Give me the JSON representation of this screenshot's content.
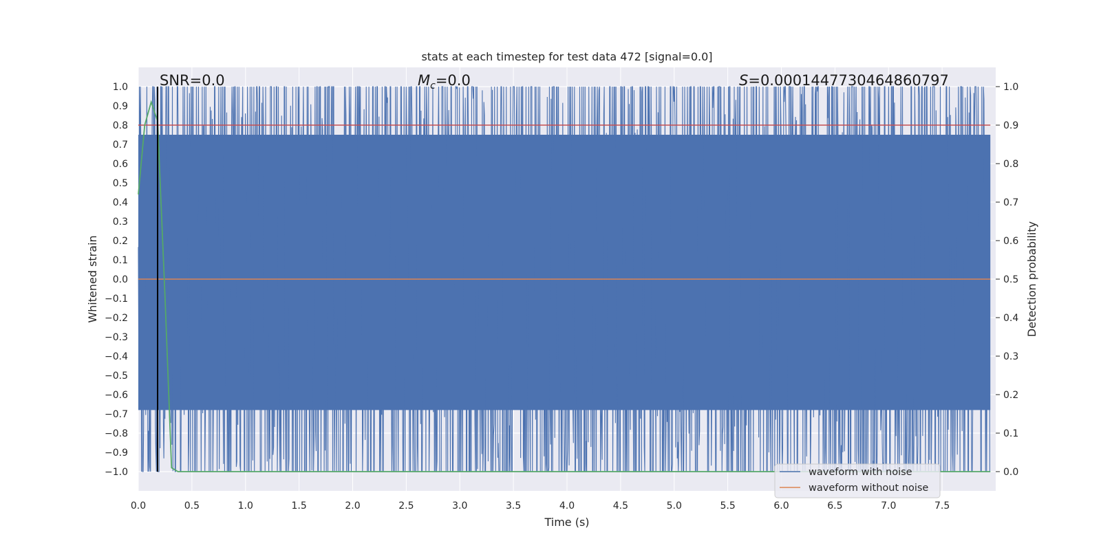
{
  "chart_data": {
    "type": "line",
    "title": "stats at each timestep for test data 472 [signal=0.0]",
    "xlabel": "Time (s)",
    "ylabel": "Whitened strain",
    "ylabel_right": "Detection probability",
    "xlim": [
      0.0,
      8.0
    ],
    "ylim": [
      -1.1,
      1.1
    ],
    "ylim_right": [
      -0.05,
      1.05
    ],
    "grid": true,
    "x_ticks": [
      "0.0",
      "0.5",
      "1.0",
      "1.5",
      "2.0",
      "2.5",
      "3.0",
      "3.5",
      "4.0",
      "4.5",
      "5.0",
      "5.5",
      "6.0",
      "6.5",
      "7.0",
      "7.5"
    ],
    "x_tick_values": [
      0.0,
      0.5,
      1.0,
      1.5,
      2.0,
      2.5,
      3.0,
      3.5,
      4.0,
      4.5,
      5.0,
      5.5,
      6.0,
      6.5,
      7.0,
      7.5
    ],
    "y_ticks": [
      "1.0",
      "0.9",
      "0.8",
      "0.7",
      "0.6",
      "0.5",
      "0.4",
      "0.3",
      "0.2",
      "0.1",
      "0.0",
      "−0.1",
      "−0.2",
      "−0.3",
      "−0.4",
      "−0.5",
      "−0.6",
      "−0.7",
      "−0.8",
      "−0.9",
      "−1.0"
    ],
    "y_tick_values": [
      1.0,
      0.9,
      0.8,
      0.7,
      0.6,
      0.5,
      0.4,
      0.3,
      0.2,
      0.1,
      0.0,
      -0.1,
      -0.2,
      -0.3,
      -0.4,
      -0.5,
      -0.6,
      -0.7,
      -0.8,
      -0.9,
      -1.0
    ],
    "y_right_ticks": [
      "1.0",
      "0.9",
      "0.8",
      "0.7",
      "0.6",
      "0.5",
      "0.4",
      "0.3",
      "0.2",
      "0.1",
      "0.0"
    ],
    "y_right_tick_values": [
      1.0,
      0.9,
      0.8,
      0.7,
      0.6,
      0.5,
      0.4,
      0.3,
      0.2,
      0.1,
      0.0
    ],
    "annotations": {
      "snr": "SNR=0.0",
      "mc_symbol": "M",
      "mc_sub": "c",
      "mc_value": "=0.0",
      "s_symbol": "S",
      "s_value": "=0.0001447730464860797"
    },
    "series": [
      {
        "name": "waveform with noise",
        "color": "#4c72b0",
        "description": "dense clipped noise filling roughly -1.0 to 1.0",
        "band": [
          -1.0,
          1.0
        ]
      },
      {
        "name": "waveform without noise",
        "color": "#dd8452",
        "values_constant": 0.0
      },
      {
        "name": "detection probability",
        "color": "#55a868",
        "axis": "right",
        "x": [
          0.0,
          0.06,
          0.12,
          0.18,
          0.25,
          0.31,
          0.37,
          7.95
        ],
        "values": [
          0.72,
          0.9,
          0.96,
          0.91,
          0.45,
          0.01,
          0.0,
          0.0
        ]
      },
      {
        "name": "threshold",
        "color": "#c44e52",
        "axis": "right",
        "values_constant": 0.9
      },
      {
        "name": "marker",
        "color": "#000000",
        "x_constant": 0.18
      }
    ],
    "legend": {
      "placement": "bottom-right",
      "entries": [
        "waveform with noise",
        "waveform without noise"
      ]
    }
  },
  "colors": {
    "plot_bg": "#eaeaf2",
    "grid": "#ffffff",
    "noise": "#4c72b0",
    "clean": "#dd8452",
    "prob": "#55a868",
    "threshold": "#c44e52"
  }
}
